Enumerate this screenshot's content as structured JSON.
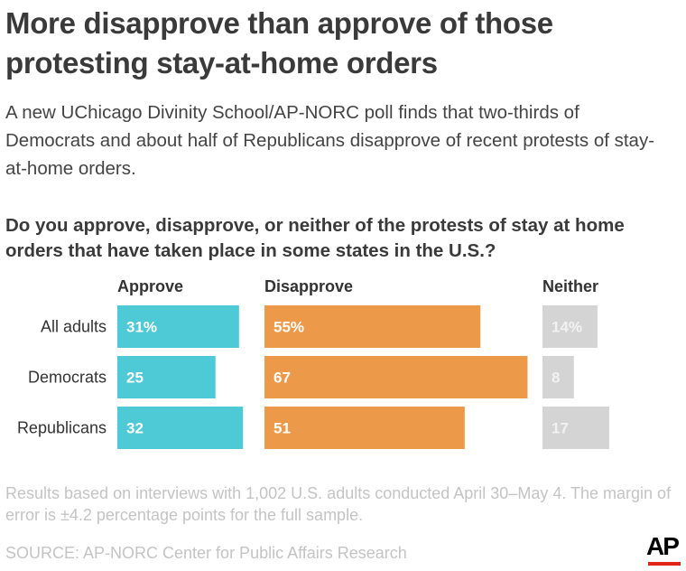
{
  "title": "More disapprove than approve of those protesting stay-at-home orders",
  "subtitle": "A new UChicago Divinity School/AP-NORC poll finds that two-thirds of Democrats and about half of Republicans disapprove of recent protests of stay-at-home orders.",
  "question": "Do you approve, disapprove, or neither of the protests of stay at home orders that have taken place in some states in the U.S.?",
  "note": "Results based on interviews with 1,002 U.S. adults conducted April 30–May 4. The margin of error is ±4.2 percentage points for the full sample.",
  "source": "SOURCE: AP-NORC Center for Public Affairs Research",
  "logo": "AP",
  "colors": {
    "approve": "#4ec9d6",
    "disapprove": "#ec9a49",
    "neither": "#d4d4d4",
    "label_light": "#ffffff",
    "label_neither": "#f2f2f2",
    "text": "#333333",
    "logo_red": "#e2231a"
  },
  "chart_data": {
    "type": "bar",
    "orientation": "horizontal",
    "layout": "side-by-side panels",
    "categories": [
      "All adults",
      "Democrats",
      "Republicans"
    ],
    "series": [
      {
        "name": "Approve",
        "values": [
          31,
          25,
          32
        ],
        "labels": [
          "31%",
          "25",
          "32"
        ],
        "color": "#4ec9d6"
      },
      {
        "name": "Disapprove",
        "values": [
          55,
          67,
          51
        ],
        "labels": [
          "55%",
          "67",
          "51"
        ],
        "color": "#ec9a49"
      },
      {
        "name": "Neither",
        "values": [
          14,
          8,
          17
        ],
        "labels": [
          "14%",
          "8",
          "17"
        ],
        "color": "#d4d4d4"
      }
    ],
    "unit": "%",
    "grid": false
  }
}
